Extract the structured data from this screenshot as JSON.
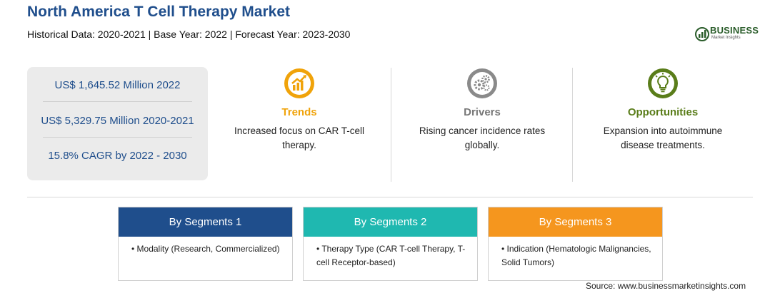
{
  "header": {
    "title": "North America T Cell Therapy Market",
    "subtitle": "Historical Data: 2020-2021 | Base Year: 2022 | Forecast Year: 2023-2030"
  },
  "logo": {
    "name": "BUSINESS",
    "tagline": "Market Insights",
    "color": "#2b5d2b"
  },
  "stats": [
    "US$ 1,645.52 Million 2022",
    "US$ 5,329.75 Million 2020-2021",
    "15.8% CAGR by 2022 - 2030"
  ],
  "features": [
    {
      "title": "Trends",
      "description": "Increased focus on CAR T-cell therapy.",
      "icon": "trend-chart-icon",
      "color": "#f0a30a"
    },
    {
      "title": "Drivers",
      "description": "Rising cancer incidence rates globally.",
      "icon": "gears-icon",
      "color": "#777777"
    },
    {
      "title": "Opportunities",
      "description": "Expansion into autoimmune disease treatments.",
      "icon": "lightbulb-icon",
      "color": "#5a7d1a"
    }
  ],
  "segments": [
    {
      "title": "By Segments 1",
      "item": "• Modality (Research, Commercialized)",
      "color": "#1f4e8c"
    },
    {
      "title": "By Segments 2",
      "item": "• Therapy Type (CAR T-cell Therapy, T-cell Receptor-based)",
      "color": "#1fb8b0"
    },
    {
      "title": "By Segments 3",
      "item": "• Indication (Hematologic Malignancies, Solid Tumors)",
      "color": "#f5961e"
    }
  ],
  "source": "Source: www.businessmarketinsights.com"
}
